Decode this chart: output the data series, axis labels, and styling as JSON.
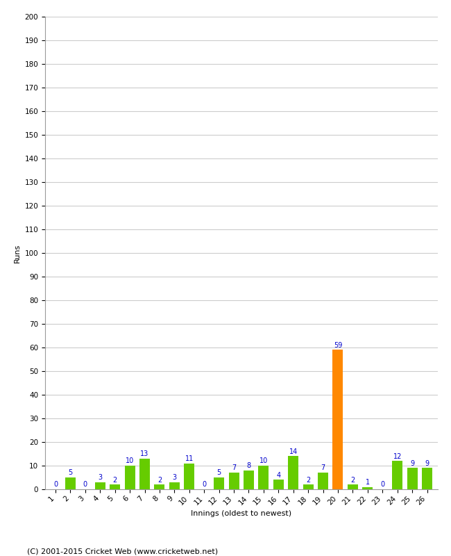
{
  "title": "",
  "xlabel": "Innings (oldest to newest)",
  "ylabel": "Runs",
  "innings": [
    1,
    2,
    3,
    4,
    5,
    6,
    7,
    8,
    9,
    10,
    11,
    12,
    13,
    14,
    15,
    16,
    17,
    18,
    19,
    20,
    21,
    22,
    23,
    24,
    25,
    26
  ],
  "values": [
    0,
    5,
    0,
    3,
    2,
    10,
    13,
    2,
    3,
    11,
    0,
    5,
    7,
    8,
    10,
    4,
    14,
    2,
    7,
    59,
    2,
    1,
    0,
    12,
    9,
    9
  ],
  "highlight_index": 19,
  "bar_color_normal": "#66cc00",
  "bar_color_highlight": "#ff8800",
  "label_color": "#0000cc",
  "ylim": [
    0,
    200
  ],
  "yticks": [
    0,
    10,
    20,
    30,
    40,
    50,
    60,
    70,
    80,
    90,
    100,
    110,
    120,
    130,
    140,
    150,
    160,
    170,
    180,
    190,
    200
  ],
  "grid_color": "#cccccc",
  "background_color": "#ffffff",
  "footer": "(C) 2001-2015 Cricket Web (www.cricketweb.net)",
  "axis_label_fontsize": 8,
  "tick_fontsize": 7.5,
  "bar_label_fontsize": 7,
  "footer_fontsize": 8
}
